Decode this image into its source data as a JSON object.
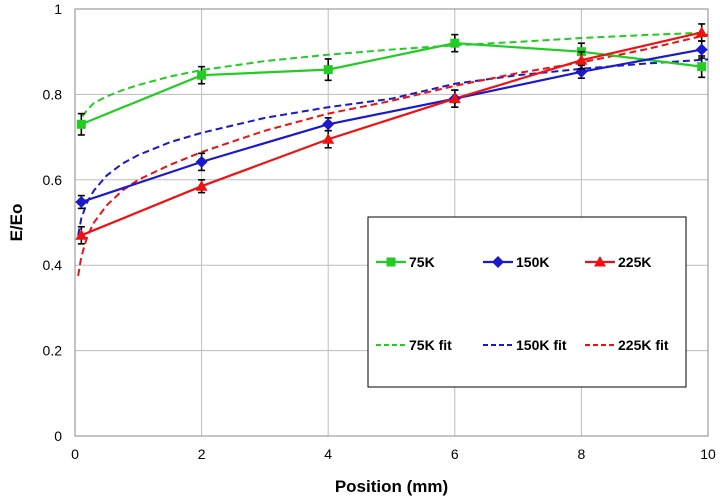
{
  "chart_data": {
    "type": "line",
    "xlabel": "Position (mm)",
    "ylabel": "E/Eo",
    "xlim": [
      0,
      10
    ],
    "ylim": [
      0,
      1
    ],
    "xticks": [
      0,
      2,
      4,
      6,
      8,
      10
    ],
    "yticks": [
      0,
      0.2,
      0.4,
      0.6,
      0.8,
      1
    ],
    "ytick_labels": [
      "0",
      "0.2",
      "0.4",
      "0.6",
      "0.8",
      "1"
    ],
    "grid": true,
    "legend_position": "right",
    "series": [
      {
        "name": "75K",
        "color": "#22cc22",
        "marker": "square",
        "style": "solid",
        "x": [
          0.1,
          2,
          4,
          6,
          8,
          9.9
        ],
        "y": [
          0.73,
          0.845,
          0.858,
          0.92,
          0.9,
          0.865
        ],
        "err": [
          0.025,
          0.02,
          0.025,
          0.02,
          0.02,
          0.025
        ]
      },
      {
        "name": "150K",
        "color": "#1a1acc",
        "marker": "diamond",
        "style": "solid",
        "x": [
          0.1,
          2,
          4,
          6,
          8,
          9.9
        ],
        "y": [
          0.548,
          0.642,
          0.73,
          0.79,
          0.853,
          0.905
        ],
        "err": [
          0.015,
          0.02,
          0.015,
          0.02,
          0.015,
          0.02
        ]
      },
      {
        "name": "225K",
        "color": "#ee1111",
        "marker": "triangle",
        "style": "solid",
        "x": [
          0.1,
          2,
          4,
          6,
          8,
          9.9
        ],
        "y": [
          0.47,
          0.585,
          0.695,
          0.79,
          0.88,
          0.945
        ],
        "err": [
          0.02,
          0.015,
          0.02,
          0.02,
          0.02,
          0.02
        ]
      },
      {
        "name": "75K fit",
        "color": "#22cc22",
        "style": "dashed",
        "x": [
          0.05,
          0.1,
          0.2,
          0.3,
          0.5,
          0.75,
          1,
          1.5,
          2,
          3,
          4,
          5,
          6,
          7,
          8,
          9,
          10
        ],
        "y": [
          0.725,
          0.745,
          0.765,
          0.78,
          0.795,
          0.81,
          0.822,
          0.842,
          0.857,
          0.878,
          0.893,
          0.905,
          0.915,
          0.923,
          0.932,
          0.939,
          0.945
        ]
      },
      {
        "name": "150K fit",
        "color": "#1a1acc",
        "style": "dashed",
        "x": [
          0.05,
          0.1,
          0.2,
          0.3,
          0.5,
          0.75,
          1,
          1.5,
          2,
          3,
          4,
          5,
          6,
          7,
          8,
          9,
          10
        ],
        "y": [
          0.47,
          0.51,
          0.55,
          0.575,
          0.61,
          0.638,
          0.658,
          0.688,
          0.71,
          0.745,
          0.77,
          0.79,
          0.825,
          0.845,
          0.86,
          0.872,
          0.882
        ]
      },
      {
        "name": "225K fit",
        "color": "#ee1111",
        "style": "dashed",
        "x": [
          0.05,
          0.1,
          0.2,
          0.3,
          0.5,
          0.75,
          1,
          1.5,
          2,
          3,
          4,
          5,
          6,
          7,
          8,
          9,
          10
        ],
        "y": [
          0.375,
          0.42,
          0.47,
          0.5,
          0.54,
          0.575,
          0.6,
          0.635,
          0.665,
          0.715,
          0.755,
          0.785,
          0.82,
          0.85,
          0.875,
          0.905,
          0.94
        ]
      }
    ]
  }
}
